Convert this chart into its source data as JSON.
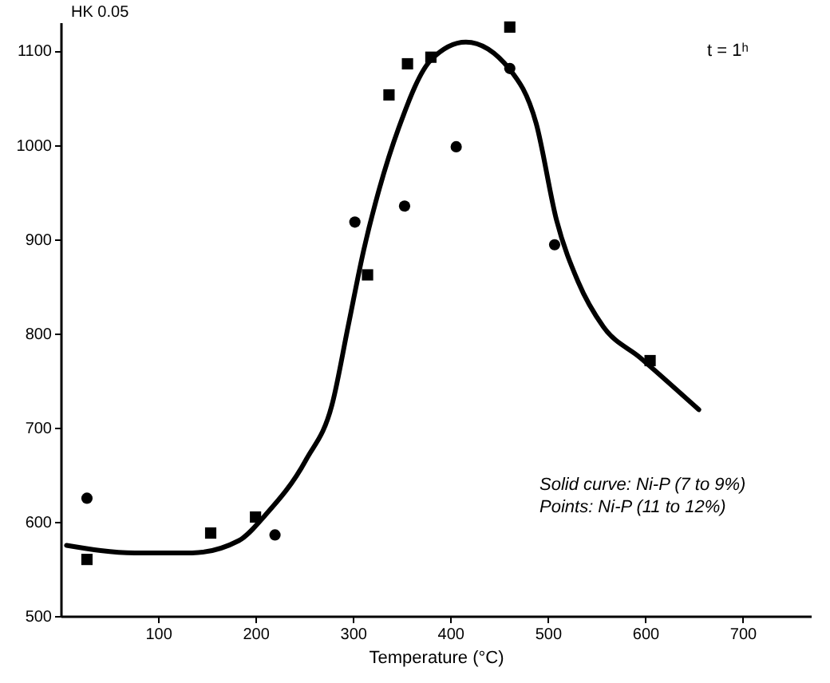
{
  "chart_data": {
    "type": "scatter",
    "xlabel": "Temperature (°C)",
    "ylabel": "HK 0.05",
    "annotations": [
      "t = 1ʰ",
      "Solid curve: Ni-P (7 to 9%)",
      "Points: Ni-P (11 to 12%)"
    ],
    "xlim": [
      0,
      770
    ],
    "ylim": [
      500,
      1130
    ],
    "xticks": [
      100,
      200,
      300,
      400,
      500,
      600,
      700
    ],
    "yticks": [
      500,
      600,
      700,
      800,
      900,
      1000,
      1100
    ],
    "grid": false,
    "series": [
      {
        "type": "line",
        "color": "#000000",
        "marker": "none",
        "line_style": "solid",
        "x": [
          6,
          76,
          135,
          183,
          210,
          252,
          279,
          295,
          311,
          327,
          347,
          380,
          416,
          461,
          488,
          509,
          531,
          557,
          595,
          655
        ],
        "values": [
          575,
          567,
          567,
          580,
          607,
          666,
          726,
          807,
          888,
          953,
          1018,
          1090,
          1109,
          1080,
          1023,
          920,
          855,
          807,
          774,
          719
        ]
      },
      {
        "color": "#000000",
        "marker": "circle",
        "x": [
          27,
          220,
          302,
          353,
          406,
          461,
          507
        ],
        "values": [
          625,
          586,
          918,
          935,
          998,
          1081,
          894
        ]
      },
      {
        "color": "#000000",
        "marker": "square",
        "x": [
          27,
          154,
          200,
          315,
          337,
          356,
          380,
          461,
          605
        ],
        "values": [
          560,
          588,
          605,
          862,
          1053,
          1086,
          1093,
          1125,
          771
        ]
      }
    ]
  }
}
